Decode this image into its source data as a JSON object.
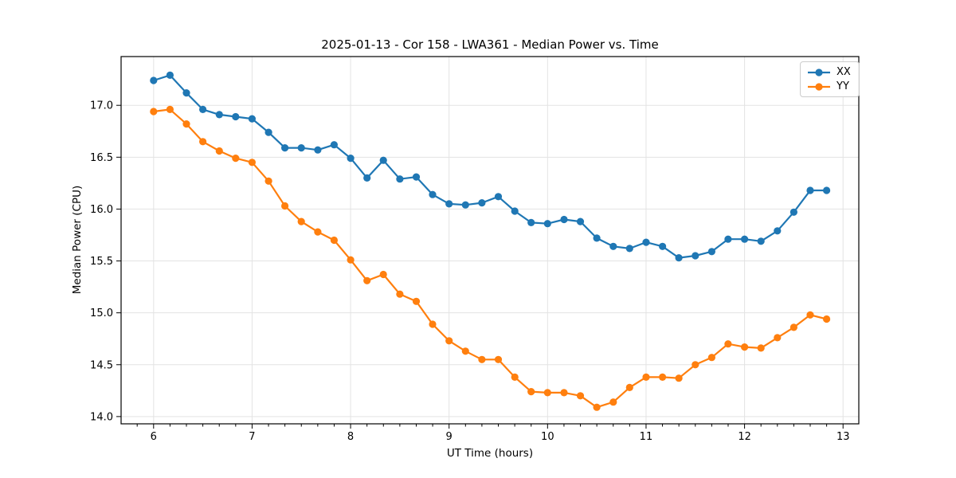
{
  "chart_data": {
    "type": "line",
    "title": "2025-01-13 - Cor 158 - LWA361 - Median Power vs. Time",
    "xlabel": "UT Time (hours)",
    "ylabel": "Median Power (CPU)",
    "xlim": [
      5.67,
      13.16
    ],
    "ylim": [
      13.93,
      17.47
    ],
    "x_major_ticks": [
      6,
      7,
      8,
      9,
      10,
      11,
      12,
      13
    ],
    "x_minor_step_hours": 0.1667,
    "y_ticks": [
      14.0,
      14.5,
      15.0,
      15.5,
      16.0,
      16.5,
      17.0
    ],
    "grid": true,
    "grid_color": "#e3e3e3",
    "legend_position": "upper right",
    "x": [
      6.0,
      6.167,
      6.333,
      6.5,
      6.667,
      6.833,
      7.0,
      7.167,
      7.333,
      7.5,
      7.667,
      7.833,
      8.0,
      8.167,
      8.333,
      8.5,
      8.667,
      8.833,
      9.0,
      9.167,
      9.333,
      9.5,
      9.667,
      9.833,
      10.0,
      10.167,
      10.333,
      10.5,
      10.667,
      10.833,
      11.0,
      11.167,
      11.333,
      11.5,
      11.667,
      11.833,
      12.0,
      12.167,
      12.333,
      12.5,
      12.667,
      12.833
    ],
    "series": [
      {
        "name": "XX",
        "color": "#1f77b4",
        "values": [
          17.24,
          17.29,
          17.12,
          16.96,
          16.91,
          16.89,
          16.87,
          16.74,
          16.59,
          16.59,
          16.57,
          16.62,
          16.49,
          16.3,
          16.47,
          16.29,
          16.31,
          16.14,
          16.05,
          16.04,
          16.06,
          16.12,
          15.98,
          15.87,
          15.86,
          15.9,
          15.88,
          15.72,
          15.64,
          15.62,
          15.68,
          15.64,
          15.53,
          15.55,
          15.59,
          15.71,
          15.71,
          15.69,
          15.79,
          15.97,
          16.18,
          16.18
        ]
      },
      {
        "name": "YY",
        "color": "#ff7f0e",
        "values": [
          16.94,
          16.96,
          16.82,
          16.65,
          16.56,
          16.49,
          16.45,
          16.27,
          16.03,
          15.88,
          15.78,
          15.7,
          15.51,
          15.31,
          15.37,
          15.18,
          15.11,
          14.89,
          14.73,
          14.63,
          14.55,
          14.55,
          14.38,
          14.24,
          14.23,
          14.23,
          14.2,
          14.09,
          14.14,
          14.28,
          14.38,
          14.38,
          14.37,
          14.5,
          14.57,
          14.7,
          14.67,
          14.66,
          14.76,
          14.86,
          14.98,
          14.94
        ]
      }
    ]
  }
}
